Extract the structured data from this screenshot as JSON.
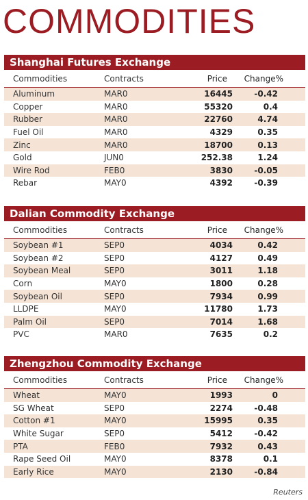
{
  "title": "COMMODITIES",
  "columns": [
    "Commodities",
    "Contracts",
    "Price",
    "Change%"
  ],
  "sections": [
    {
      "name": "Shanghai Futures Exchange",
      "rows": [
        {
          "commodity": "Aluminum",
          "contract": "MAR0",
          "price": "16445",
          "change": "-0.42"
        },
        {
          "commodity": "Copper",
          "contract": "MAR0",
          "price": "55320",
          "change": "0.4"
        },
        {
          "commodity": "Rubber",
          "contract": "MAR0",
          "price": "22760",
          "change": "4.74"
        },
        {
          "commodity": "Fuel Oil",
          "contract": "MAR0",
          "price": "4329",
          "change": "0.35"
        },
        {
          "commodity": "Zinc",
          "contract": "MAR0",
          "price": "18700",
          "change": "0.13"
        },
        {
          "commodity": "Gold",
          "contract": "JUN0",
          "price": "252.38",
          "change": "1.24"
        },
        {
          "commodity": "Wire Rod",
          "contract": "FEB0",
          "price": "3830",
          "change": "-0.05"
        },
        {
          "commodity": "Rebar",
          "contract": "MAY0",
          "price": "4392",
          "change": "-0.39"
        }
      ]
    },
    {
      "name": "Dalian Commodity Exchange",
      "rows": [
        {
          "commodity": "Soybean #1",
          "contract": "SEP0",
          "price": "4034",
          "change": "0.42"
        },
        {
          "commodity": "Soybean #2",
          "contract": "SEP0",
          "price": "4127",
          "change": "0.49"
        },
        {
          "commodity": "Soybean Meal",
          "contract": "SEP0",
          "price": "3011",
          "change": "1.18"
        },
        {
          "commodity": "Corn",
          "contract": "MAY0",
          "price": "1800",
          "change": "0.28"
        },
        {
          "commodity": "Soybean Oil",
          "contract": "SEP0",
          "price": "7934",
          "change": "0.99"
        },
        {
          "commodity": "LLDPE",
          "contract": "MAY0",
          "price": "11780",
          "change": "1.73"
        },
        {
          "commodity": "Palm Oil",
          "contract": "SEP0",
          "price": "7014",
          "change": "1.68"
        },
        {
          "commodity": "PVC",
          "contract": "MAR0",
          "price": "7635",
          "change": "0.2"
        }
      ]
    },
    {
      "name": "Zhengzhou Commodity Exchange",
      "rows": [
        {
          "commodity": "Wheat",
          "contract": "MAY0",
          "price": "1993",
          "change": "0"
        },
        {
          "commodity": "SG Wheat",
          "contract": "SEP0",
          "price": "2274",
          "change": "-0.48"
        },
        {
          "commodity": "Cotton #1",
          "contract": "MAY0",
          "price": "15995",
          "change": "0.35"
        },
        {
          "commodity": "White Sugar",
          "contract": "SEP0",
          "price": "5412",
          "change": "-0.42"
        },
        {
          "commodity": "PTA",
          "contract": "FEB0",
          "price": "7932",
          "change": "0.43"
        },
        {
          "commodity": "Rape Seed Oil",
          "contract": "MAY0",
          "price": "8378",
          "change": "0.1"
        },
        {
          "commodity": "Early Rice",
          "contract": "MAY0",
          "price": "2130",
          "change": "-0.84"
        }
      ]
    }
  ],
  "source": "Reuters",
  "colors": {
    "accent": "#9b1c22",
    "stripe": "#f5e4d6"
  }
}
